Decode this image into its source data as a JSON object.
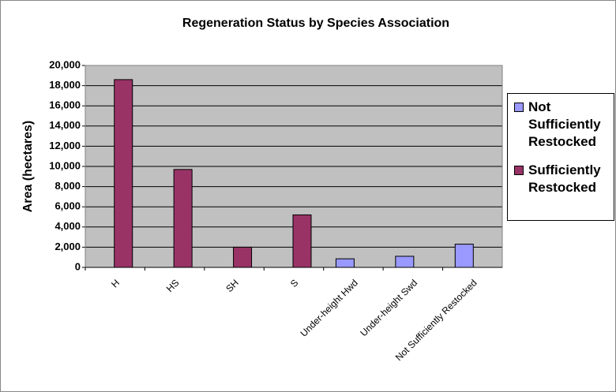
{
  "chart_data": {
    "type": "bar",
    "title": "Regeneration Status by Species Association",
    "y_label": "Area (hectares)",
    "categories": [
      "H",
      "HS",
      "SH",
      "S",
      "Under-height Hwd",
      "Under-height Swd",
      "Not Sufficiently Restocked"
    ],
    "series": [
      {
        "name": "Not Sufficiently Restocked",
        "color": "#9999ff",
        "values": [
          null,
          null,
          null,
          null,
          850,
          1100,
          2300
        ]
      },
      {
        "name": "Sufficiently Restocked",
        "color": "#993366",
        "values": [
          18600,
          9700,
          2000,
          5200,
          null,
          null,
          null
        ]
      }
    ],
    "ylim": [
      0,
      20000
    ],
    "yticks": [
      0,
      {
        "value": 2000,
        "label": "2,000"
      },
      {
        "value": 4000,
        "label": "4,000"
      },
      {
        "value": 6000,
        "label": "6,000"
      },
      {
        "value": 8000,
        "label": "8,000"
      },
      {
        "value": 10000,
        "label": "10,000"
      },
      {
        "value": 12000,
        "label": "12,000"
      },
      {
        "value": 14000,
        "label": "14,000"
      },
      {
        "value": 16000,
        "label": "16,000"
      },
      {
        "value": 18000,
        "label": "18,000"
      },
      {
        "value": 20000,
        "label": "20,000"
      }
    ],
    "grid": true,
    "plot_background": "#c0c0c0",
    "legend": "right"
  }
}
